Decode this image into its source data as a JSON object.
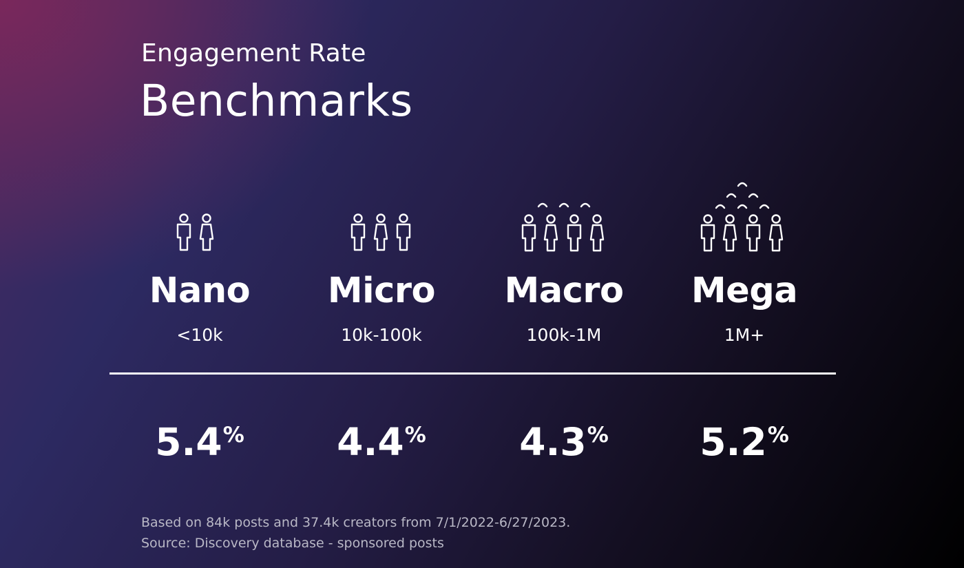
{
  "header": {
    "subtitle": "Engagement Rate",
    "title": "Benchmarks"
  },
  "chart_data": {
    "type": "table",
    "title": "Benchmarks",
    "subtitle": "Engagement Rate",
    "unit": "%",
    "categories": [
      "Nano",
      "Micro",
      "Macro",
      "Mega"
    ],
    "ranges": [
      "<10k",
      "10k-100k",
      "100k-1M",
      "1M+"
    ],
    "values": [
      5.4,
      4.4,
      4.3,
      5.2
    ],
    "value_labels": [
      "5.4",
      "4.4",
      "4.3",
      "5.2"
    ],
    "icons": [
      "two-people-icon",
      "three-people-icon",
      "four-people-crowd-icon",
      "large-crowd-icon"
    ]
  },
  "footer": {
    "line1": "Based on 84k posts and 37.4k creators from 7/1/2022-6/27/2023.",
    "line2": "Source: Discovery database - sponsored posts"
  },
  "colors": {
    "text": "#ffffff",
    "footnote": "#b9b8c6",
    "background_start": "#4a2a62",
    "background_end": "#000000"
  }
}
